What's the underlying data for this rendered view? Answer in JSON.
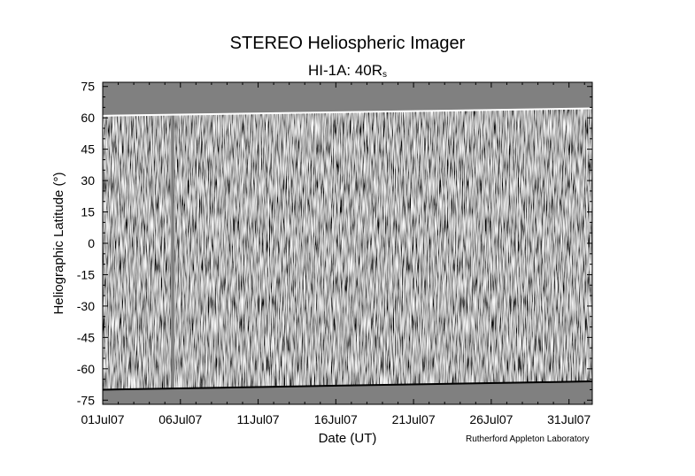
{
  "chart_data": {
    "type": "heatmap",
    "title": "STEREO Heliospheric Imager",
    "subtitle_main": "HI-1A: 40R",
    "subtitle_sub": "s",
    "xlabel": "Date (UT)",
    "ylabel": "Heliographic Latitude (°)",
    "x_ticks": [
      "01Jul07",
      "06Jul07",
      "11Jul07",
      "16Jul07",
      "21Jul07",
      "26Jul07",
      "31Jul07"
    ],
    "x_tick_days": [
      0,
      5,
      10,
      15,
      20,
      25,
      30
    ],
    "xlim_days": [
      0,
      31.5
    ],
    "y_ticks": [
      75,
      60,
      45,
      30,
      15,
      0,
      -15,
      -30,
      -45,
      -60,
      -75
    ],
    "ylim": [
      -77,
      77
    ],
    "coverage_top_lat": [
      61,
      64.5
    ],
    "coverage_bottom_lat": [
      -70,
      -66
    ],
    "data_gaps_days": [
      4.4,
      4.6
    ],
    "colormap": "grayscale",
    "no_data_color": "#808080",
    "credit": "Rutherford Appleton Laboratory"
  }
}
